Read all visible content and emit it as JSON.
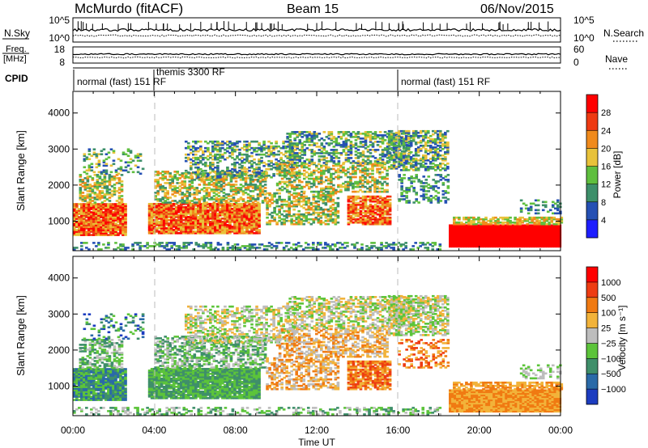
{
  "header": {
    "station": "McMurdo (fitACF)",
    "beam": "Beam 15",
    "date": "06/Nov/2015"
  },
  "panels": {
    "nsky": {
      "left_label": "N.Sky",
      "right_label": "N.Search",
      "left_ticks": [
        "10^5",
        "10^0"
      ],
      "right_ticks": [
        "10^5",
        "10^0"
      ]
    },
    "freq": {
      "left_label_top": "Freq.",
      "left_label_bottom": "[MHz]",
      "right_label": "Nave",
      "left_ticks": [
        "18",
        "8"
      ],
      "right_ticks": [
        "60",
        "0"
      ]
    },
    "cpid": {
      "label": "CPID",
      "segments": [
        {
          "text": "normal (fast) 151 RF",
          "start_h": 0
        },
        {
          "text": "themis 3300 RF",
          "start_h": 4
        },
        {
          "text": "normal (fast) 151 RF",
          "start_h": 16
        }
      ]
    }
  },
  "chart_data": [
    {
      "type": "heatmap",
      "name": "power",
      "ylabel": "Slant Range [km]",
      "xlabel": "Time UT",
      "xticks": [
        "00:00",
        "04:00",
        "08:00",
        "12:00",
        "16:00",
        "20:00",
        "00:00"
      ],
      "xlim_hours": [
        0,
        24
      ],
      "ylim_km": [
        180,
        4600
      ],
      "yticks": [
        1000,
        2000,
        3000,
        4000
      ],
      "colorbar": {
        "label": "Power [dB]",
        "ticks": [
          "4",
          "8",
          "12",
          "16",
          "20",
          "24",
          "28"
        ],
        "colors": [
          "#1e1eff",
          "#2550b4",
          "#3d8f6a",
          "#5fbf3e",
          "#e8c23a",
          "#f08a1c",
          "#ee3a12",
          "#ff0000"
        ]
      }
    },
    {
      "type": "heatmap",
      "name": "velocity",
      "ylabel": "Slant Range [km]",
      "xlabel": "Time UT",
      "xticks": [
        "00:00",
        "04:00",
        "08:00",
        "12:00",
        "16:00",
        "20:00",
        "00:00"
      ],
      "xlim_hours": [
        0,
        24
      ],
      "ylim_km": [
        180,
        4600
      ],
      "yticks": [
        1000,
        2000,
        3000,
        4000
      ],
      "colorbar": {
        "label": "Velocity [m s⁻¹]",
        "ticks": [
          "1000",
          "500",
          "100",
          "25",
          "−25",
          "−100",
          "−500",
          "−1000"
        ],
        "colors": [
          "#1c3cc0",
          "#2a6aa8",
          "#3f8f6a",
          "#5cc43a",
          "#bdbdbd",
          "#f2b33a",
          "#f07a12",
          "#ee3c12",
          "#ff0000"
        ]
      }
    }
  ],
  "colors": {
    "gridline": "#bbbbbb",
    "axis": "#000000",
    "background": "#ffffff"
  }
}
